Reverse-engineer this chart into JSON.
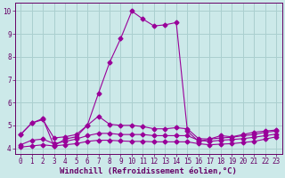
{
  "xlabel": "Windchill (Refroidissement éolien,°C)",
  "background_color": "#cce9e9",
  "grid_color": "#aacfcf",
  "line_color": "#990099",
  "xlim": [
    -0.5,
    23.5
  ],
  "ylim": [
    3.75,
    10.35
  ],
  "xticks": [
    0,
    1,
    2,
    3,
    4,
    5,
    6,
    7,
    8,
    9,
    10,
    11,
    12,
    13,
    14,
    15,
    16,
    17,
    18,
    19,
    20,
    21,
    22,
    23
  ],
  "yticks": [
    4,
    5,
    6,
    7,
    8,
    9,
    10
  ],
  "line1_x": [
    0,
    1,
    2,
    3,
    4,
    5,
    6,
    7,
    8,
    9,
    10,
    11,
    12,
    13,
    14,
    15,
    16,
    17,
    18,
    19,
    20,
    21,
    22,
    23
  ],
  "line1_y": [
    4.6,
    5.1,
    5.3,
    4.1,
    4.4,
    4.5,
    5.0,
    6.4,
    7.75,
    8.8,
    10.0,
    9.65,
    9.35,
    9.4,
    9.5,
    4.75,
    4.3,
    4.4,
    4.55,
    4.5,
    4.6,
    4.7,
    4.75,
    4.8
  ],
  "line2_x": [
    0,
    1,
    2,
    3,
    4,
    5,
    6,
    7,
    8,
    9,
    10,
    11,
    12,
    13,
    14,
    15,
    16,
    17,
    18,
    19,
    20,
    21,
    22,
    23
  ],
  "line2_y": [
    4.6,
    5.1,
    5.25,
    4.45,
    4.5,
    4.6,
    5.0,
    5.4,
    5.05,
    5.0,
    5.0,
    4.95,
    4.85,
    4.85,
    4.9,
    4.85,
    4.42,
    4.4,
    4.45,
    4.48,
    4.55,
    4.6,
    4.7,
    4.75
  ],
  "line3_x": [
    0,
    1,
    2,
    3,
    4,
    5,
    6,
    7,
    8,
    9,
    10,
    11,
    12,
    13,
    14,
    15,
    16,
    17,
    18,
    19,
    20,
    21,
    22,
    23
  ],
  "line3_y": [
    4.15,
    4.35,
    4.4,
    4.2,
    4.3,
    4.4,
    4.55,
    4.65,
    4.65,
    4.6,
    4.6,
    4.6,
    4.55,
    4.55,
    4.55,
    4.55,
    4.35,
    4.3,
    4.35,
    4.38,
    4.42,
    4.48,
    4.55,
    4.62
  ],
  "line4_x": [
    0,
    1,
    2,
    3,
    4,
    5,
    6,
    7,
    8,
    9,
    10,
    11,
    12,
    13,
    14,
    15,
    16,
    17,
    18,
    19,
    20,
    21,
    22,
    23
  ],
  "line4_y": [
    4.05,
    4.1,
    4.15,
    4.1,
    4.15,
    4.2,
    4.3,
    4.35,
    4.35,
    4.32,
    4.3,
    4.3,
    4.28,
    4.28,
    4.28,
    4.28,
    4.2,
    4.15,
    4.18,
    4.2,
    4.25,
    4.3,
    4.4,
    4.5
  ],
  "tick_fontsize": 5.5,
  "xlabel_fontsize": 6.5,
  "figwidth": 3.2,
  "figheight": 2.0,
  "dpi": 100
}
